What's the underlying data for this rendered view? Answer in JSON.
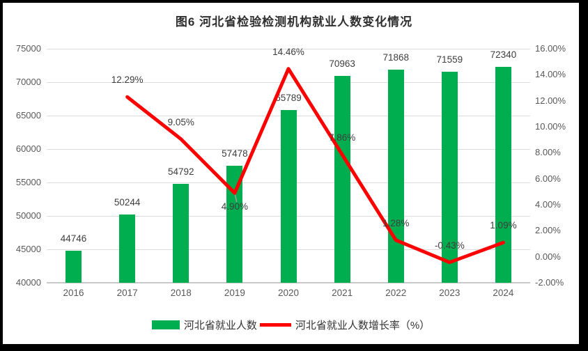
{
  "chart_data": {
    "type": "bar+line combo",
    "title": "图6 河北省检验检测机构就业人数变化情况",
    "categories": [
      "2016",
      "2017",
      "2018",
      "2019",
      "2020",
      "2021",
      "2022",
      "2023",
      "2024"
    ],
    "series": [
      {
        "name": "河北省就业人数",
        "type": "bar",
        "axis": "left",
        "values": [
          44746,
          50244,
          54792,
          57478,
          65789,
          70963,
          71868,
          71559,
          72340
        ],
        "labels": [
          "44746",
          "50244",
          "54792",
          "57478",
          "65789",
          "70963",
          "71868",
          "71559",
          "72340"
        ]
      },
      {
        "name": "河北省就业人数增长率（%）",
        "type": "line",
        "axis": "right",
        "values": [
          null,
          12.29,
          9.05,
          4.9,
          14.46,
          7.86,
          1.28,
          -0.43,
          1.09
        ],
        "labels": [
          null,
          "12.29%",
          "9.05%",
          "4.90%",
          "14.46%",
          "7.86%",
          "1.28%",
          "-0.43%",
          "1.09%"
        ],
        "label_positions": [
          null,
          "above",
          "above",
          "below",
          "above",
          "above",
          "above",
          "above",
          "above"
        ]
      }
    ],
    "left_axis": {
      "min": 40000,
      "max": 75000,
      "step": 5000,
      "tick_labels": [
        "40000",
        "45000",
        "50000",
        "55000",
        "60000",
        "65000",
        "70000",
        "75000"
      ]
    },
    "right_axis": {
      "min": -2,
      "max": 16,
      "step": 2,
      "tick_labels": [
        "-2.00%",
        "0.00%",
        "2.00%",
        "4.00%",
        "6.00%",
        "8.00%",
        "10.00%",
        "12.00%",
        "14.00%",
        "16.00%"
      ]
    },
    "grid": true,
    "legend_position": "bottom"
  },
  "colors": {
    "bar": "#00AE50",
    "line": "#FF0000",
    "grid": "#DCDCDC",
    "leader": "#9e9e9e",
    "axis_text": "#595959",
    "label_text": "#3d3d3d",
    "title_text": "#2f2f2f",
    "background": "#FFFFFF",
    "frame": "#000000"
  }
}
